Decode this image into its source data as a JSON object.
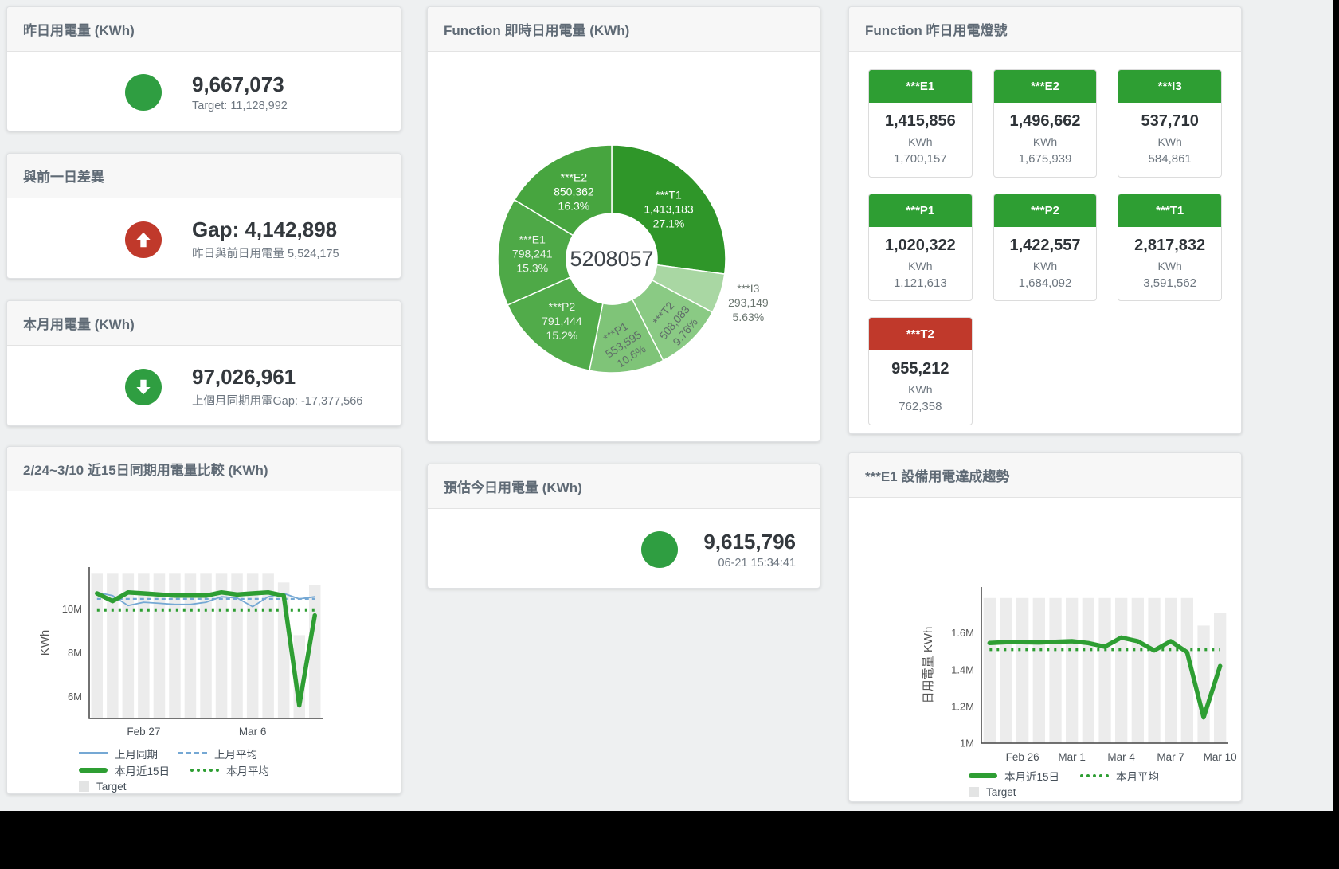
{
  "colors": {
    "green": "#2f9e41",
    "red": "#c0392b",
    "blue": "#75a8d4",
    "bar_gray": "#ececec",
    "tile_green": "#2e9e33"
  },
  "cards": {
    "yesterday": {
      "title": "昨日用電量 (KWh)",
      "value": "9,667,073",
      "subtitle": "Target: 11,128,992",
      "status_color": "#2f9e41"
    },
    "gap": {
      "title": "與前一日差異",
      "value": "Gap: 4,142,898",
      "subtitle": "昨日與前日用電量 5,524,175",
      "status_color": "#c0392b",
      "arrow": "up"
    },
    "month": {
      "title": "本月用電量 (KWh)",
      "value": "97,026,961",
      "subtitle": "上個月同期用電Gap: -17,377,566",
      "status_color": "#2f9e41",
      "arrow": "down"
    },
    "estimate": {
      "title": "預估今日用電量 (KWh)",
      "value": "9,615,796",
      "subtitle": "06-21 15:34:41",
      "status_color": "#2f9e41"
    }
  },
  "tiles_card": {
    "title": "Function 昨日用電燈號",
    "tiles": [
      {
        "name": "***E1",
        "value": "1,415,856",
        "unit": "KWh",
        "target": "1,700,157",
        "color": "#2e9e33"
      },
      {
        "name": "***E2",
        "value": "1,496,662",
        "unit": "KWh",
        "target": "1,675,939",
        "color": "#2e9e33"
      },
      {
        "name": "***I3",
        "value": "537,710",
        "unit": "KWh",
        "target": "584,861",
        "color": "#2e9e33"
      },
      {
        "name": "***P1",
        "value": "1,020,322",
        "unit": "KWh",
        "target": "1,121,613",
        "color": "#2e9e33"
      },
      {
        "name": "***P2",
        "value": "1,422,557",
        "unit": "KWh",
        "target": "1,684,092",
        "color": "#2e9e33"
      },
      {
        "name": "***T1",
        "value": "2,817,832",
        "unit": "KWh",
        "target": "3,591,562",
        "color": "#2e9e33"
      },
      {
        "name": "***T2",
        "value": "955,212",
        "unit": "KWh",
        "target": "762,358",
        "color": "#c0392b"
      }
    ]
  },
  "chart_data": [
    {
      "id": "donut",
      "type": "pie",
      "title": "Function 即時日用電量 (KWh)",
      "center_label": "5208057",
      "legend_position": "none",
      "slices": [
        {
          "name": "***T1",
          "value": 1413183,
          "value_label": "1,413,183",
          "pct": 27.1,
          "pct_label": "27.1%",
          "color": "#2f9629",
          "label_color": "#ffffff",
          "label_r": 95,
          "rotate": 0,
          "inside": true
        },
        {
          "name": "***I3",
          "value": 293149,
          "value_label": "293,149",
          "pct": 5.63,
          "pct_label": "5.63%",
          "color": "#a9d7a3",
          "label_color": "#6a756f",
          "label_r": 180,
          "rotate": 0,
          "inside": false
        },
        {
          "name": "***T2",
          "value": 508083,
          "value_label": "508,083",
          "pct": 9.76,
          "pct_label": "9.76%",
          "color": "#8aca84",
          "label_color": "#5f6e68",
          "label_r": 112,
          "rotate": -50,
          "inside": true
        },
        {
          "name": "***P1",
          "value": 553595,
          "value_label": "553,595",
          "pct": 10.6,
          "pct_label": "10.6%",
          "color": "#7fc478",
          "label_color": "#5f6e68",
          "label_r": 108,
          "rotate": -33,
          "inside": true
        },
        {
          "name": "***P2",
          "value": 791444,
          "value_label": "791,444",
          "pct": 15.2,
          "pct_label": "15.2%",
          "color": "#51ab4a",
          "label_color": "#eef4ed",
          "label_r": 100,
          "rotate": 0,
          "inside": true
        },
        {
          "name": "***E1",
          "value": 798241,
          "value_label": "798,241",
          "pct": 15.3,
          "pct_label": "15.3%",
          "color": "#4ea947",
          "label_color": "#eef4ed",
          "label_r": 100,
          "rotate": 0,
          "inside": true
        },
        {
          "name": "***E2",
          "value": 850362,
          "value_label": "850,362",
          "pct": 16.3,
          "pct_label": "16.3%",
          "color": "#47a53f",
          "label_color": "#ffffff",
          "label_r": 97,
          "rotate": 0,
          "inside": true
        }
      ]
    },
    {
      "id": "compare",
      "type": "line",
      "title": "2/24~3/10 近15日同期用電量比較 (KWh)",
      "ylabel": "KWh",
      "ylim": [
        5000000,
        11900000
      ],
      "grid": false,
      "yticks": [
        {
          "v": 6000000,
          "label": "6M"
        },
        {
          "v": 8000000,
          "label": "8M"
        },
        {
          "v": 10000000,
          "label": "10M"
        }
      ],
      "xticks": [
        {
          "i": 3,
          "label": "Feb 27"
        },
        {
          "i": 10,
          "label": "Mar 6"
        }
      ],
      "bars": {
        "name": "Target",
        "color": "#ececec",
        "values": [
          11600000,
          11600000,
          11600000,
          11600000,
          11600000,
          11600000,
          11600000,
          11600000,
          11600000,
          11600000,
          11600000,
          11600000,
          11200000,
          8800000,
          11100000
        ]
      },
      "series": [
        {
          "name": "上月同期",
          "color": "#75a8d4",
          "width": 1.8,
          "dash": "",
          "values": [
            10750000,
            10600000,
            10150000,
            10300000,
            10250000,
            10200000,
            10200000,
            10300000,
            10550000,
            10500000,
            10100000,
            10550000,
            10700000,
            10450000,
            10550000
          ]
        },
        {
          "name": "上月平均",
          "color": "#75a8d4",
          "width": 2.2,
          "dash": "5 4",
          "values": [
            10450000,
            10450000,
            10450000,
            10450000,
            10450000,
            10450000,
            10450000,
            10450000,
            10450000,
            10450000,
            10450000,
            10450000,
            10450000,
            10450000,
            10450000
          ]
        },
        {
          "name": "本月平均",
          "color": "#2e9e33",
          "width": 4,
          "dash": "3 6",
          "values": [
            9950000,
            9950000,
            9950000,
            9950000,
            9950000,
            9950000,
            9950000,
            9950000,
            9950000,
            9950000,
            9950000,
            9950000,
            9950000,
            9950000,
            9950000
          ]
        },
        {
          "name": "本月近15日",
          "color": "#2e9e33",
          "width": 5.5,
          "dash": "",
          "values": [
            10700000,
            10350000,
            10750000,
            10700000,
            10650000,
            10600000,
            10600000,
            10600000,
            10750000,
            10650000,
            10700000,
            10750000,
            10600000,
            5600000,
            9700000
          ]
        }
      ],
      "legend_rows": [
        [
          {
            "label": "上月同期",
            "swatch": "line-blue"
          },
          {
            "label": "上月平均",
            "swatch": "dash-blue"
          }
        ],
        [
          {
            "label": "本月近15日",
            "swatch": "line-green"
          },
          {
            "label": "本月平均",
            "swatch": "dot-green"
          }
        ],
        [
          {
            "label": "Target",
            "swatch": "box-gray"
          }
        ]
      ]
    },
    {
      "id": "trend",
      "type": "line",
      "title": "***E1 設備用電達成趨勢",
      "ylabel": "日用電量 KWh",
      "ylim": [
        1000000,
        1850000
      ],
      "grid": false,
      "yticks": [
        {
          "v": 1000000,
          "label": "1M"
        },
        {
          "v": 1200000,
          "label": "1.2M"
        },
        {
          "v": 1400000,
          "label": "1.4M"
        },
        {
          "v": 1600000,
          "label": "1.6M"
        }
      ],
      "xticks": [
        {
          "i": 2,
          "label": "Feb 26"
        },
        {
          "i": 5,
          "label": "Mar 1"
        },
        {
          "i": 8,
          "label": "Mar 4"
        },
        {
          "i": 11,
          "label": "Mar 7"
        },
        {
          "i": 14,
          "label": "Mar 10"
        }
      ],
      "bars": {
        "name": "Target",
        "color": "#ececec",
        "values": [
          1790000,
          1790000,
          1790000,
          1790000,
          1790000,
          1790000,
          1790000,
          1790000,
          1790000,
          1790000,
          1790000,
          1790000,
          1790000,
          1640000,
          1710000
        ]
      },
      "series": [
        {
          "name": "本月平均",
          "color": "#2e9e33",
          "width": 4,
          "dash": "3 6",
          "values": [
            1510000,
            1510000,
            1510000,
            1510000,
            1510000,
            1510000,
            1510000,
            1510000,
            1510000,
            1510000,
            1510000,
            1510000,
            1510000,
            1510000,
            1510000
          ]
        },
        {
          "name": "本月近15日",
          "color": "#2e9e33",
          "width": 5.5,
          "dash": "",
          "values": [
            1545000,
            1550000,
            1550000,
            1548000,
            1552000,
            1555000,
            1545000,
            1525000,
            1575000,
            1555000,
            1505000,
            1555000,
            1495000,
            1140000,
            1420000
          ]
        }
      ],
      "legend_rows": [
        [
          {
            "label": "本月近15日",
            "swatch": "line-green"
          },
          {
            "label": "本月平均",
            "swatch": "dot-green"
          }
        ],
        [
          {
            "label": "Target",
            "swatch": "box-gray"
          }
        ]
      ]
    }
  ]
}
